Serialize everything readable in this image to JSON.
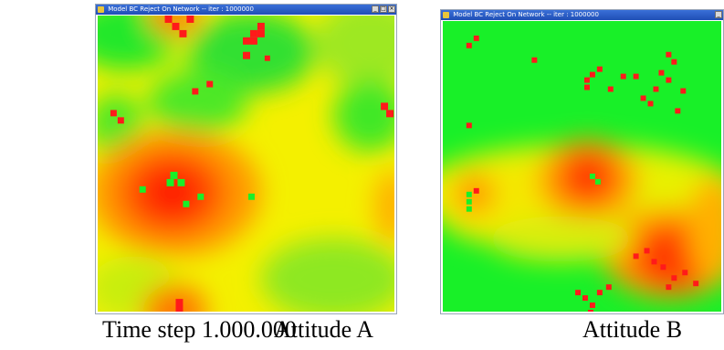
{
  "window_a": {
    "title": "Model BC Reject On Network -- iter : 1000000",
    "minimize_icon": "minimize-icon",
    "maximize_icon": "maximize-icon",
    "close_icon": "close-icon",
    "minimize": "_",
    "maximize": "□",
    "close": "×"
  },
  "window_b": {
    "title": "Model BC Reject On Network -- iter : 1000000",
    "minimize_icon": "minimize-icon",
    "maximize_icon": "maximize-icon",
    "close_icon": "close-icon",
    "minimize": "_",
    "maximize": "□",
    "close": "×"
  },
  "captions": {
    "time_step": "Time step 1.000.000",
    "attitude_a": "Attitude A",
    "attitude_b": "Attitude B"
  },
  "colors": {
    "red": "#ff1a1a",
    "orange": "#ff8a00",
    "yellow": "#f8f400",
    "green": "#18f028"
  }
}
